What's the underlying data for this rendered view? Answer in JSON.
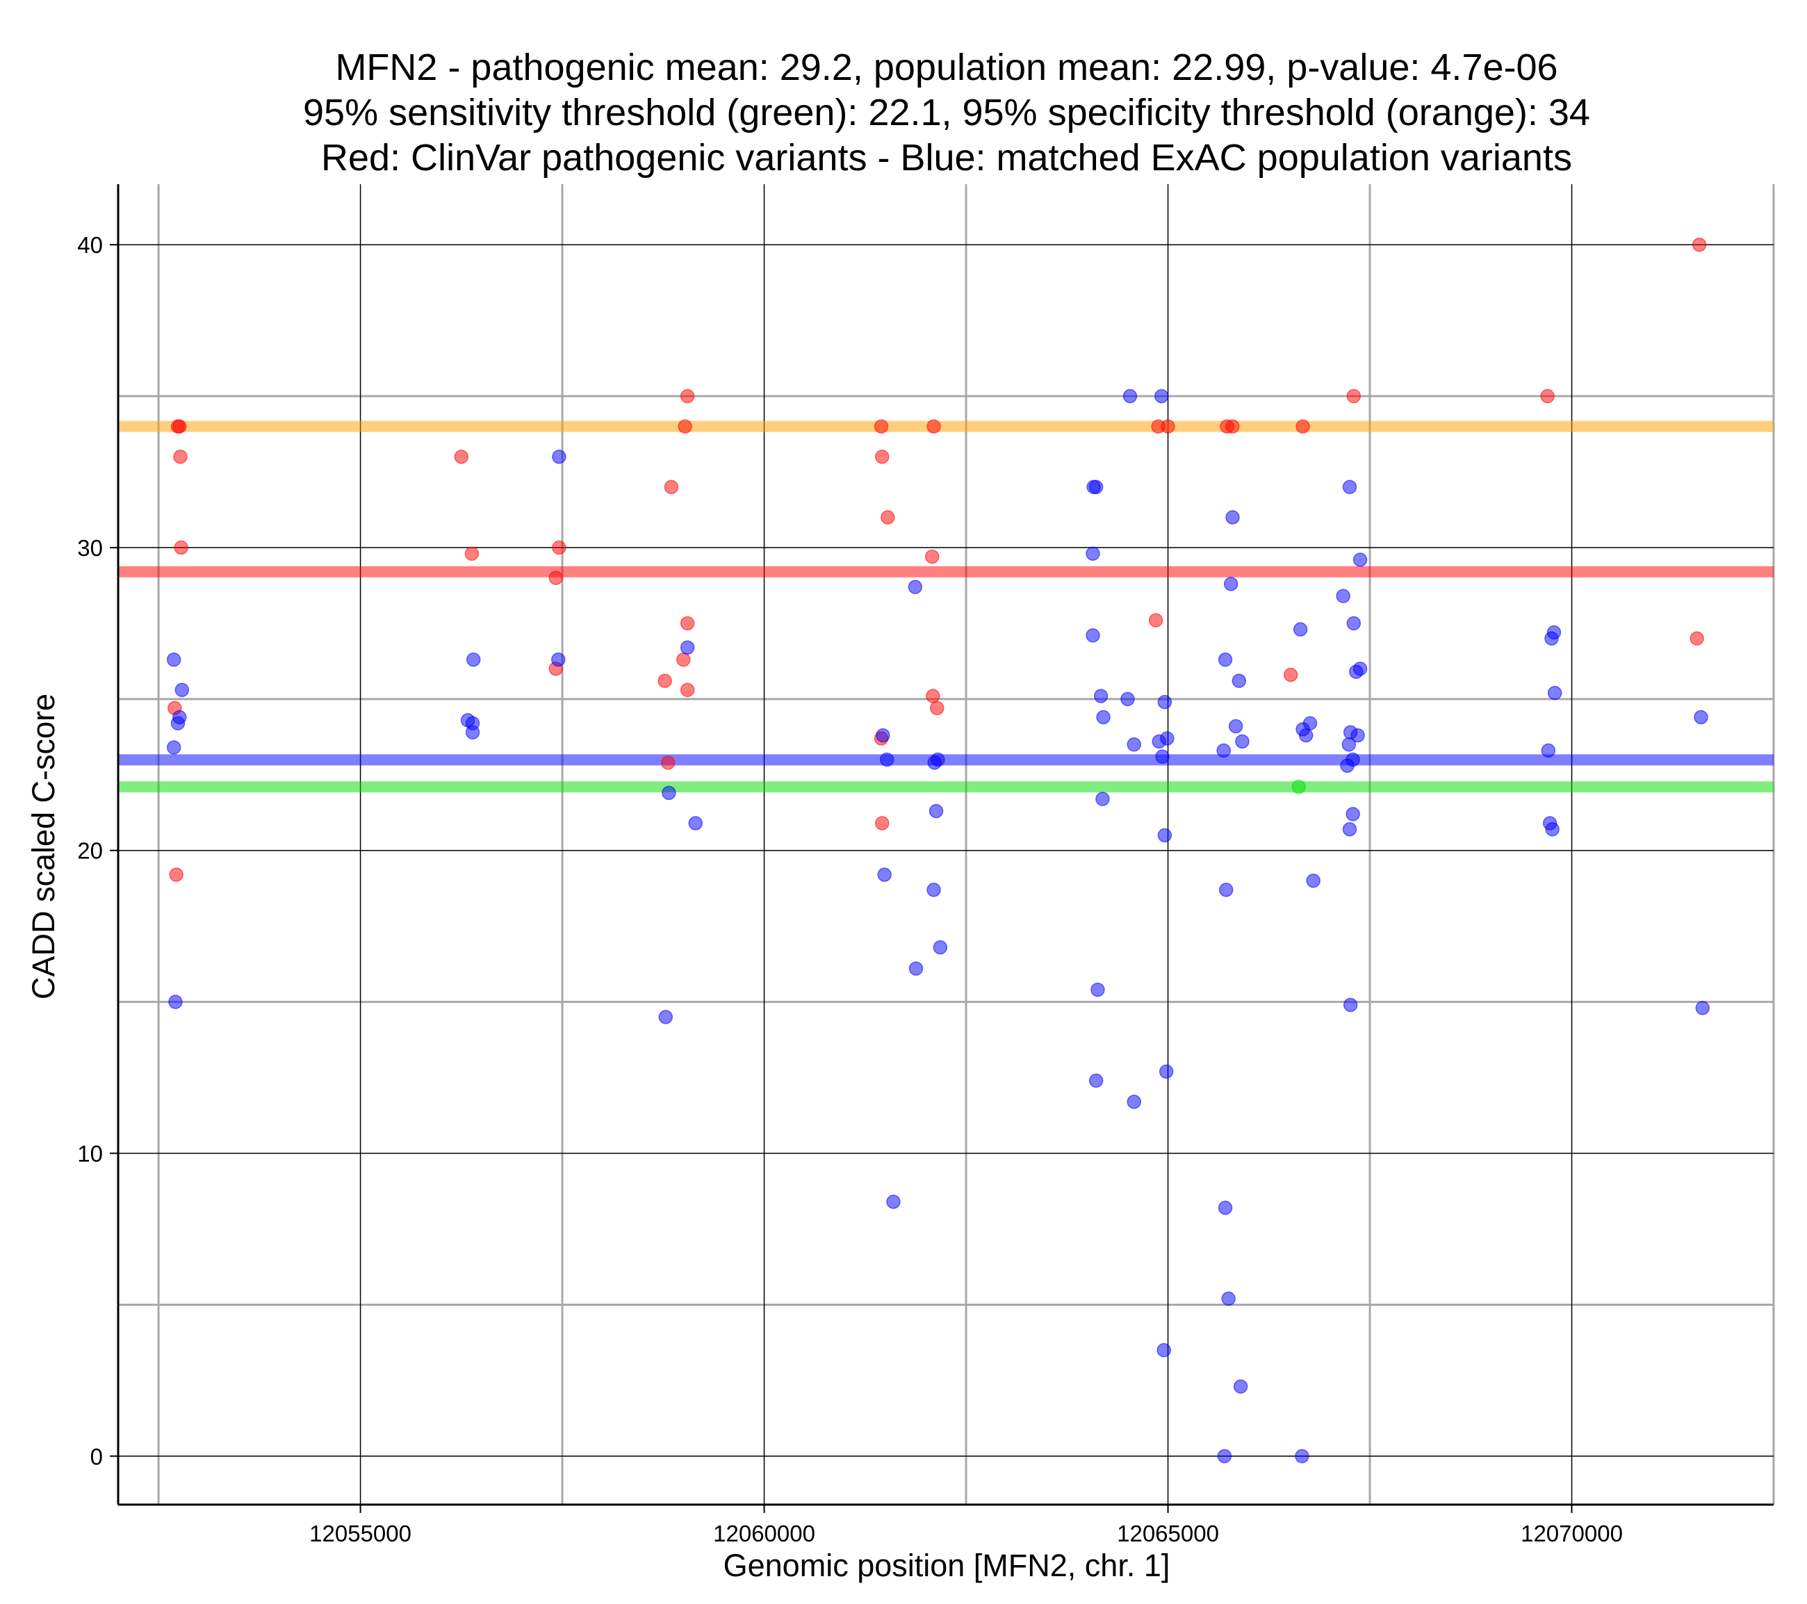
{
  "chart_data": {
    "type": "scatter",
    "title_lines": [
      "MFN2 - pathogenic mean: 29.2, population mean: 22.99, p-value: 4.7e-06",
      "95% sensitivity threshold (green): 22.1, 95% specificity threshold (orange): 34",
      "Red: ClinVar pathogenic variants - Blue: matched ExAC population variants"
    ],
    "xlabel": "Genomic position [MFN2, chr. 1]",
    "ylabel": "CADD scaled C-score",
    "xlim": [
      12052000,
      12072500
    ],
    "ylim": [
      -1.6,
      42
    ],
    "x_major_ticks": [
      12055000,
      12060000,
      12065000,
      12070000
    ],
    "x_tick_labels": [
      "12055000",
      "12060000",
      "12065000",
      "12070000"
    ],
    "x_minor_ticks": [
      12052500,
      12057500,
      12062500,
      12067500,
      12072500
    ],
    "y_major_ticks": [
      0,
      10,
      20,
      30,
      40
    ],
    "y_tick_labels": [
      "0",
      "10",
      "20",
      "30",
      "40"
    ],
    "y_minor_ticks": [
      5,
      15,
      25,
      35
    ],
    "colors": {
      "pathogenic": "#ff0000",
      "population": "#0000ff",
      "sensitivity": "#00dd00",
      "specificity": "#ffa000",
      "pathogenic_mean": "#ff0000",
      "population_mean": "#0000ff",
      "major_grid": "#000000",
      "minor_grid": "#a8a8a8"
    },
    "reference_lines": [
      {
        "name": "specificity threshold",
        "y": 34,
        "color_key": "specificity"
      },
      {
        "name": "pathogenic mean",
        "y": 29.2,
        "color_key": "pathogenic_mean"
      },
      {
        "name": "population mean",
        "y": 22.99,
        "color_key": "population_mean"
      },
      {
        "name": "sensitivity threshold",
        "y": 22.1,
        "color_key": "sensitivity"
      }
    ],
    "series": [
      {
        "name": "ClinVar pathogenic variants",
        "color_key": "pathogenic",
        "points": [
          [
            12052740,
            34
          ],
          [
            12052760,
            34
          ],
          [
            12052770,
            33
          ],
          [
            12052780,
            30
          ],
          [
            12052700,
            24.7
          ],
          [
            12052720,
            19.2
          ],
          [
            12056250,
            33
          ],
          [
            12056380,
            29.8
          ],
          [
            12057420,
            29
          ],
          [
            12057460,
            30
          ],
          [
            12057420,
            26
          ],
          [
            12058850,
            32
          ],
          [
            12059050,
            35
          ],
          [
            12059020,
            34
          ],
          [
            12059050,
            27.5
          ],
          [
            12059000,
            26.3
          ],
          [
            12059050,
            25.3
          ],
          [
            12058770,
            25.6
          ],
          [
            12058810,
            22.9
          ],
          [
            12061450,
            34
          ],
          [
            12061460,
            33
          ],
          [
            12061530,
            31
          ],
          [
            12061450,
            23.7
          ],
          [
            12061460,
            20.9
          ],
          [
            12062100,
            34
          ],
          [
            12062080,
            29.7
          ],
          [
            12062090,
            25.1
          ],
          [
            12062140,
            24.7
          ],
          [
            12064880,
            34
          ],
          [
            12064850,
            27.6
          ],
          [
            12065000,
            34
          ],
          [
            12065730,
            34
          ],
          [
            12065800,
            34
          ],
          [
            12066670,
            34
          ],
          [
            12066520,
            25.8
          ],
          [
            12067300,
            35
          ],
          [
            12069700,
            35
          ],
          [
            12071580,
            40
          ],
          [
            12071550,
            27
          ]
        ]
      },
      {
        "name": "matched ExAC population variants",
        "color_key": "population",
        "points": [
          [
            12052690,
            26.3
          ],
          [
            12052790,
            25.3
          ],
          [
            12052760,
            24.4
          ],
          [
            12052740,
            24.2
          ],
          [
            12052690,
            23.4
          ],
          [
            12052710,
            15
          ],
          [
            12056330,
            24.3
          ],
          [
            12056390,
            24.2
          ],
          [
            12056390,
            23.9
          ],
          [
            12056400,
            26.3
          ],
          [
            12057460,
            33
          ],
          [
            12057450,
            26.3
          ],
          [
            12059050,
            26.7
          ],
          [
            12059150,
            20.9
          ],
          [
            12058820,
            21.9
          ],
          [
            12058780,
            14.5
          ],
          [
            12061470,
            23.8
          ],
          [
            12061520,
            23
          ],
          [
            12061490,
            19.2
          ],
          [
            12061600,
            8.4
          ],
          [
            12061870,
            28.7
          ],
          [
            12061880,
            16.1
          ],
          [
            12062110,
            22.9
          ],
          [
            12062150,
            23
          ],
          [
            12062130,
            21.3
          ],
          [
            12062100,
            18.7
          ],
          [
            12062180,
            16.8
          ],
          [
            12064080,
            32
          ],
          [
            12064110,
            32
          ],
          [
            12064070,
            29.8
          ],
          [
            12064070,
            27.1
          ],
          [
            12064170,
            25.1
          ],
          [
            12064200,
            24.4
          ],
          [
            12064190,
            21.7
          ],
          [
            12064130,
            15.4
          ],
          [
            12064110,
            12.4
          ],
          [
            12064530,
            35
          ],
          [
            12064580,
            23.5
          ],
          [
            12064580,
            11.7
          ],
          [
            12064500,
            25
          ],
          [
            12064920,
            35
          ],
          [
            12064890,
            23.6
          ],
          [
            12064930,
            23.1
          ],
          [
            12064990,
            23.7
          ],
          [
            12064960,
            24.9
          ],
          [
            12064960,
            20.5
          ],
          [
            12064980,
            12.7
          ],
          [
            12064950,
            3.5
          ],
          [
            12065800,
            31
          ],
          [
            12065780,
            28.8
          ],
          [
            12065710,
            26.3
          ],
          [
            12065880,
            25.6
          ],
          [
            12065840,
            24.1
          ],
          [
            12065920,
            23.6
          ],
          [
            12065690,
            23.3
          ],
          [
            12065720,
            18.7
          ],
          [
            12065710,
            8.2
          ],
          [
            12065750,
            5.2
          ],
          [
            12065900,
            2.3
          ],
          [
            12065700,
            0
          ],
          [
            12066640,
            27.3
          ],
          [
            12066670,
            24
          ],
          [
            12066760,
            24.2
          ],
          [
            12066710,
            23.8
          ],
          [
            12066800,
            19
          ],
          [
            12066660,
            0
          ],
          [
            12067170,
            28.4
          ],
          [
            12067250,
            32
          ],
          [
            12067300,
            27.5
          ],
          [
            12067380,
            29.6
          ],
          [
            12067330,
            25.9
          ],
          [
            12067380,
            26
          ],
          [
            12067260,
            23.9
          ],
          [
            12067350,
            23.8
          ],
          [
            12067240,
            23.5
          ],
          [
            12067290,
            23
          ],
          [
            12067220,
            22.8
          ],
          [
            12067290,
            21.2
          ],
          [
            12067250,
            20.7
          ],
          [
            12067260,
            14.9
          ],
          [
            12069750,
            27
          ],
          [
            12069780,
            27.2
          ],
          [
            12069790,
            25.2
          ],
          [
            12069710,
            23.3
          ],
          [
            12069730,
            20.9
          ],
          [
            12069760,
            20.7
          ],
          [
            12071600,
            24.4
          ],
          [
            12071620,
            14.8
          ]
        ]
      },
      {
        "name": "variants at sensitivity threshold",
        "color_key": "sensitivity",
        "points": [
          [
            12066620,
            22.1
          ]
        ]
      }
    ]
  }
}
